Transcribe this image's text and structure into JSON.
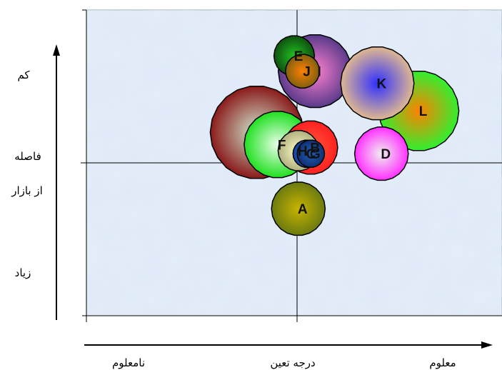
{
  "chart_data": {
    "type": "bubble",
    "title": "",
    "xlabel": "درجه تعین",
    "x_low_label": "نامعلوم",
    "x_high_label": "معلوم",
    "ylabel_top": "کم",
    "ylabel_mid_1": "فاصله",
    "ylabel_mid_2": "از بازار",
    "ylabel_bottom": "زیاد",
    "xlim": [
      0,
      100
    ],
    "ylim": [
      0,
      100
    ],
    "grid": false,
    "background": "blue-marble texture",
    "series": [
      {
        "label": "A",
        "x": 51,
        "y": 35,
        "size": 6,
        "color": "#c8b400",
        "edge": "#6b7a10"
      },
      {
        "label": "B",
        "x": 54,
        "y": 55,
        "size": 6,
        "color": "#ff5a3c",
        "edge": "#ff2020"
      },
      {
        "label": "C",
        "x": 53,
        "y": 53,
        "size": 2,
        "color": "#2f7fd0",
        "edge": "#1040a0"
      },
      {
        "label": "D",
        "x": 71,
        "y": 53,
        "size": 6,
        "color": "#f0f0f0",
        "edge": "#ff30ff"
      },
      {
        "label": "E",
        "x": 50,
        "y": 85,
        "size": 4,
        "color": "#20c020",
        "edge": "#105010"
      },
      {
        "label": "F",
        "x": 46,
        "y": 56,
        "size": 8,
        "color": "#eaffea",
        "edge": "#20e020"
      },
      {
        "label": "G",
        "x": 54,
        "y": 53,
        "size": 2,
        "color": "#2060c0",
        "edge": "#103070"
      },
      {
        "label": "H",
        "x": 51,
        "y": 54,
        "size": 4,
        "color": "#ffffc8",
        "edge": "#b0b080"
      },
      {
        "label": "I",
        "x": 55,
        "y": 80,
        "size": 9,
        "color": "#ff80d0",
        "edge": "#5a3a8a"
      },
      {
        "label": "J",
        "x": 52,
        "y": 80,
        "size": 3,
        "color": "#ff8000",
        "edge": "#806010"
      },
      {
        "label": "K",
        "x": 70,
        "y": 76,
        "size": 9,
        "color": "#3030ff",
        "edge": "#e0b890"
      },
      {
        "label": "L",
        "x": 80,
        "y": 67,
        "size": 10,
        "color": "#ff8000",
        "edge": "#30f030"
      },
      {
        "label": "",
        "x": 41,
        "y": 60,
        "size": 12,
        "color": "#d0e8d0",
        "edge": "#8a1a1a"
      }
    ]
  }
}
